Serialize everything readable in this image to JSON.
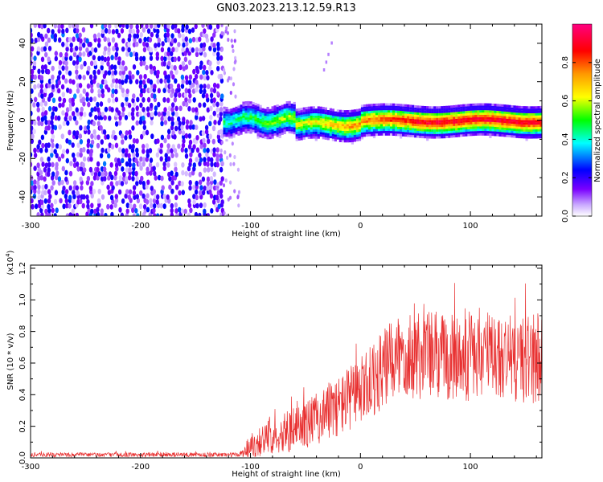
{
  "title": "GN03.2023.213.12.59.R13",
  "chart_data": [
    {
      "type": "heatmap",
      "xlabel": "Height of straight line (km)",
      "ylabel": "Frequency (Hz)",
      "xlim": [
        -300,
        165
      ],
      "ylim": [
        -50,
        50
      ],
      "xticks": [
        -300,
        -200,
        -100,
        0,
        100
      ],
      "yticks": [
        -40,
        -20,
        0,
        20,
        40
      ],
      "colorbar": {
        "label": "Normalized spectral amplitude",
        "range": [
          0,
          1
        ],
        "ticks": [
          "0.0",
          "0.2",
          "0.4",
          "0.6",
          "0.8"
        ],
        "colors": [
          "#ffffff",
          "#7a00ff",
          "#0000ff",
          "#00ffff",
          "#00ff00",
          "#ffff00",
          "#ff7f00",
          "#ff0000",
          "#ff0080"
        ]
      },
      "regions": [
        {
          "name": "noise",
          "x": [
            -300,
            -125
          ],
          "freq": [
            -50,
            50
          ],
          "amplitude": 0.25
        },
        {
          "name": "signal-band",
          "x": [
            -125,
            165
          ],
          "center_freq": 0,
          "half_width": 5,
          "peak_amplitude": 0.85
        }
      ]
    },
    {
      "type": "line",
      "xlabel": "Height of straight line (km)",
      "ylabel": "SNR (10 * v/v)",
      "y_multiplier": "(x10",
      "y_multiplier_exp": "4",
      "y_multiplier_close": ")",
      "xlim": [
        -300,
        165
      ],
      "ylim": [
        0,
        1.22
      ],
      "xticks": [
        -300,
        -200,
        -100,
        0,
        100
      ],
      "yticks": [
        "0.0",
        "0.2",
        "0.4",
        "0.6",
        "0.8",
        "1.0",
        "1.2"
      ],
      "series": [
        {
          "color": "#e83030",
          "envelope_x": [
            -300,
            -110,
            -100,
            -80,
            -60,
            -40,
            -20,
            0,
            20,
            40,
            60,
            80,
            100,
            120,
            140,
            165
          ],
          "envelope_mean": [
            0.02,
            0.02,
            0.08,
            0.14,
            0.18,
            0.25,
            0.33,
            0.42,
            0.55,
            0.68,
            0.66,
            0.63,
            0.66,
            0.65,
            0.62,
            0.64
          ],
          "envelope_spread": [
            0.01,
            0.01,
            0.06,
            0.08,
            0.1,
            0.12,
            0.14,
            0.16,
            0.18,
            0.22,
            0.22,
            0.2,
            0.22,
            0.2,
            0.2,
            0.22
          ]
        }
      ]
    }
  ]
}
